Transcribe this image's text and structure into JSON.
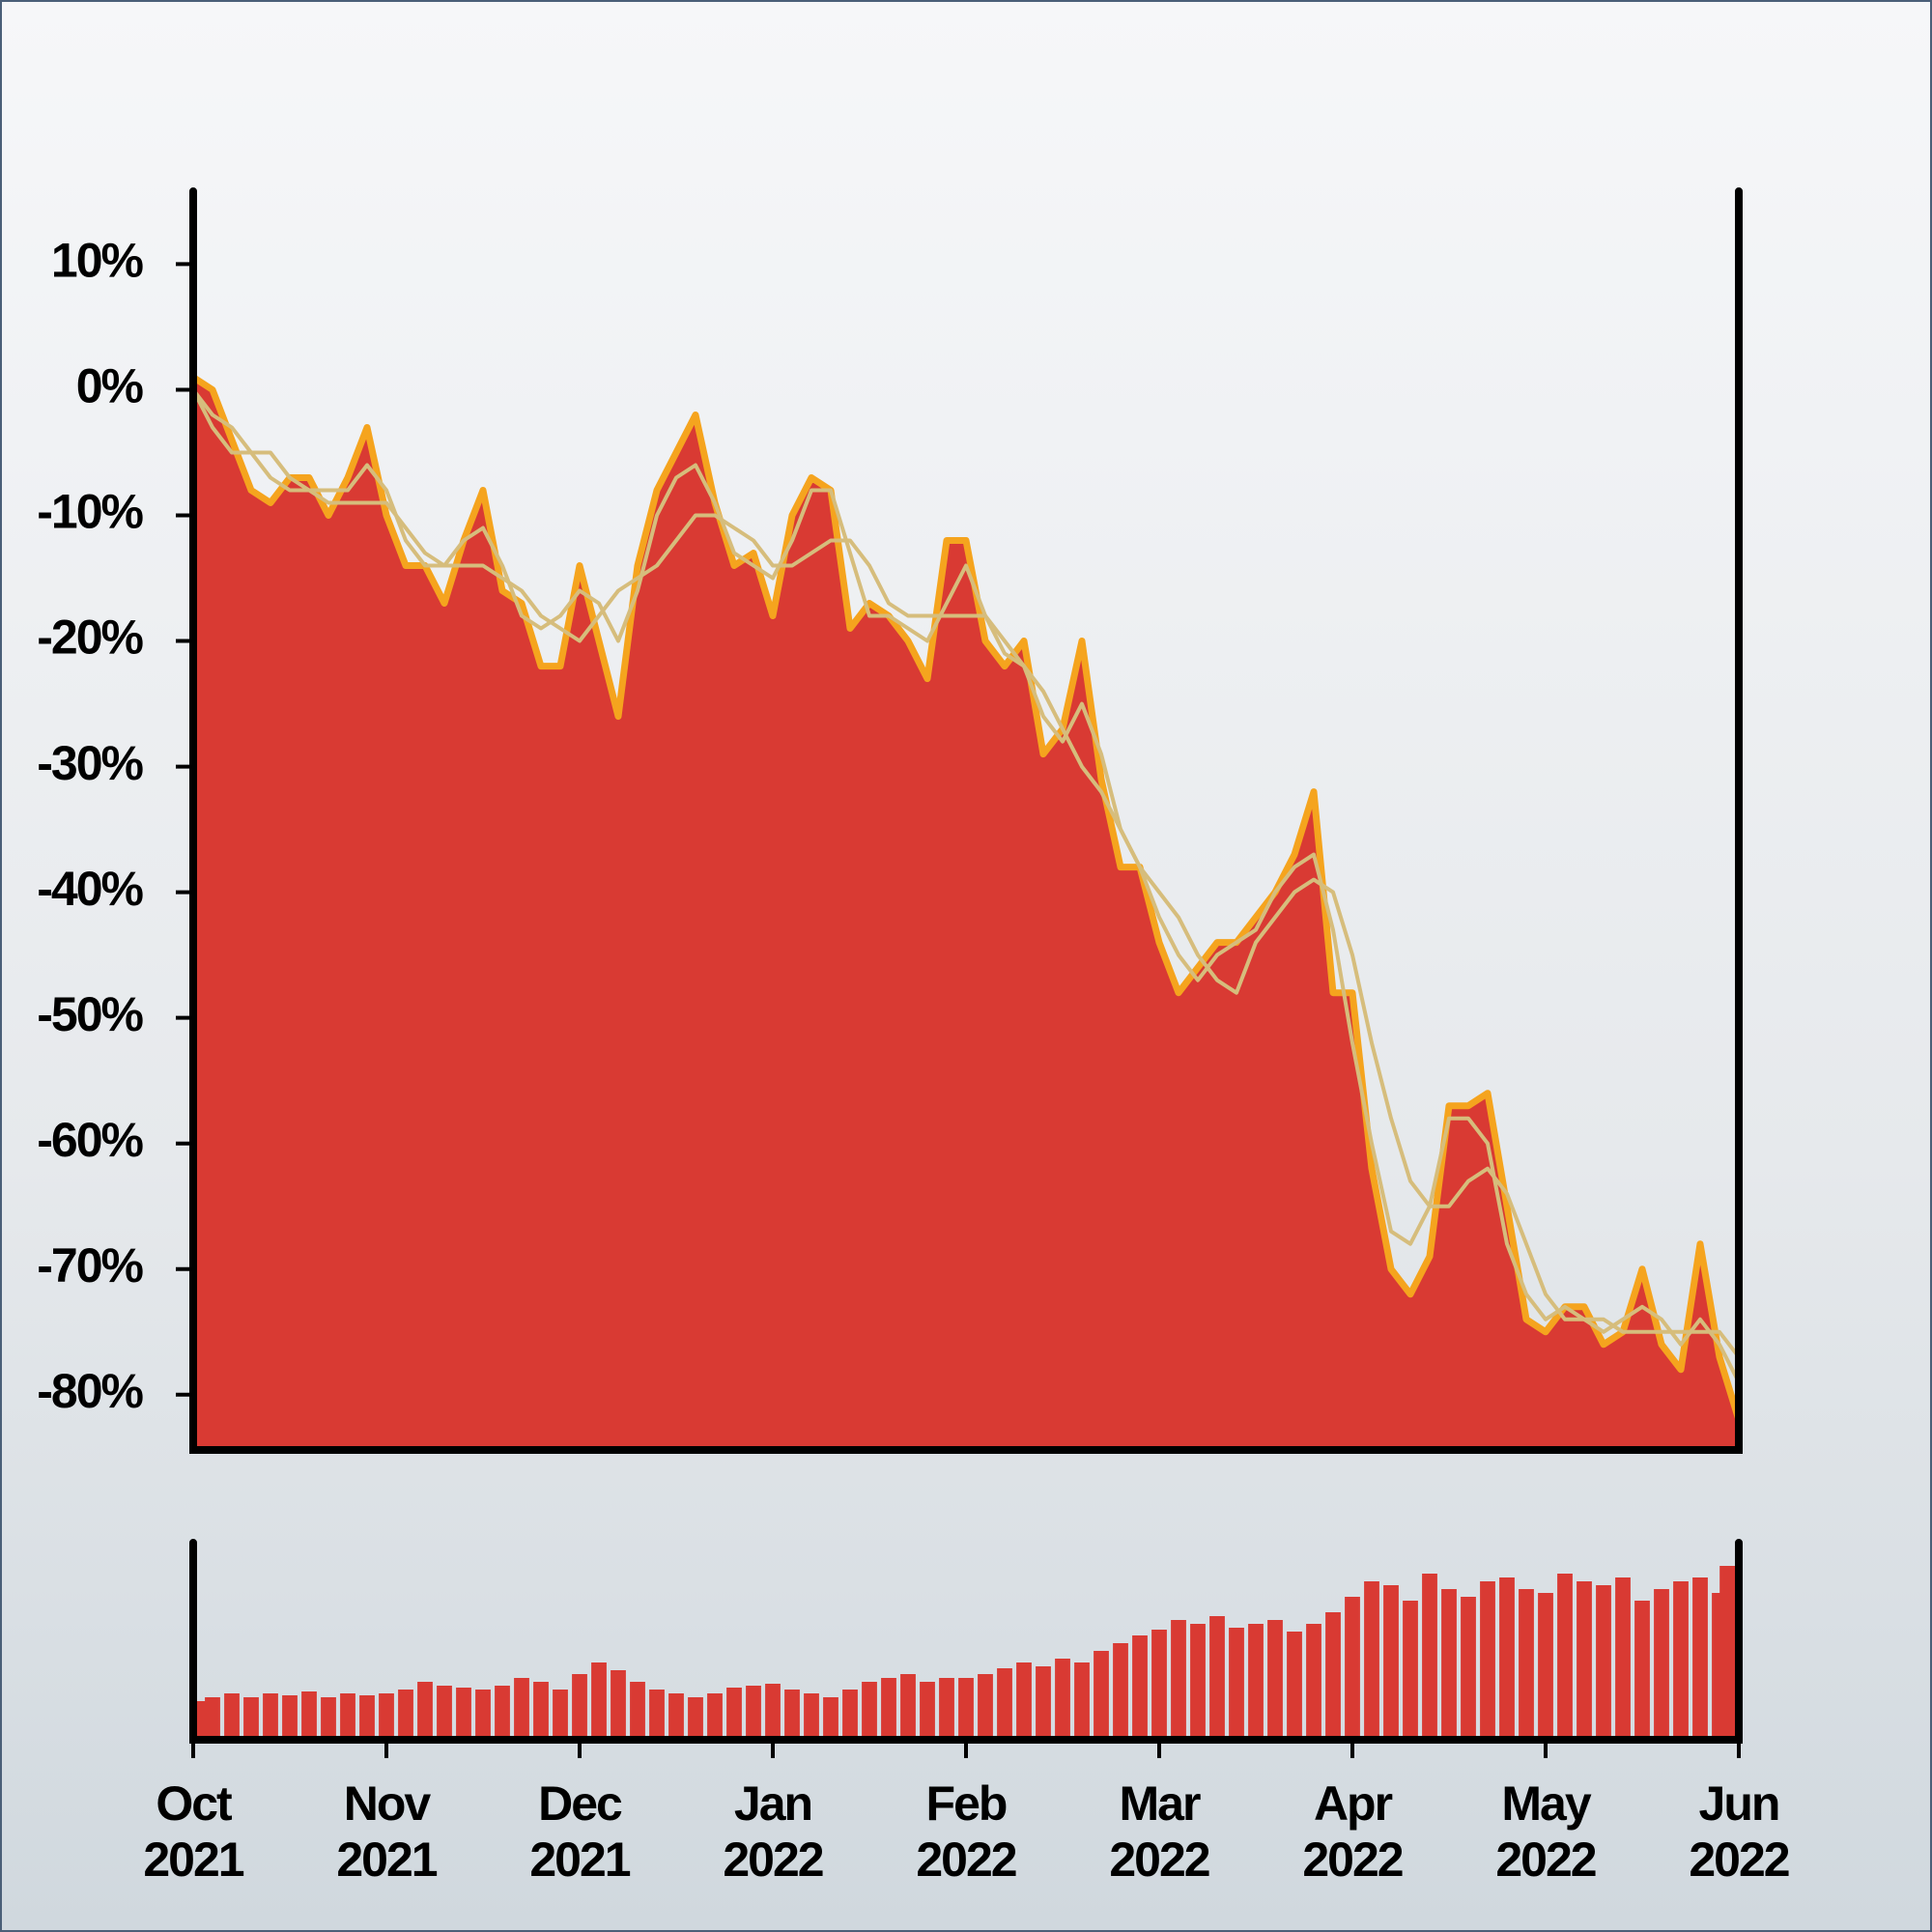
{
  "chart_data": {
    "type": "area",
    "x": [
      0,
      0.1,
      0.2,
      0.3,
      0.4,
      0.5,
      0.6,
      0.7,
      0.8,
      0.9,
      1,
      1.1,
      1.2,
      1.3,
      1.4,
      1.5,
      1.6,
      1.7,
      1.8,
      1.9,
      2,
      2.1,
      2.2,
      2.3,
      2.4,
      2.5,
      2.6,
      2.7,
      2.8,
      2.9,
      3,
      3.1,
      3.2,
      3.3,
      3.4,
      3.5,
      3.6,
      3.7,
      3.8,
      3.9,
      4,
      4.1,
      4.2,
      4.3,
      4.4,
      4.5,
      4.6,
      4.7,
      4.8,
      4.9,
      5,
      5.1,
      5.2,
      5.3,
      5.4,
      5.5,
      5.6,
      5.7,
      5.8,
      5.9,
      6,
      6.1,
      6.2,
      6.3,
      6.4,
      6.5,
      6.6,
      6.7,
      6.8,
      6.9,
      7,
      7.1,
      7.2,
      7.3,
      7.4,
      7.5,
      7.6,
      7.7,
      7.8,
      7.9,
      8
    ],
    "series": [
      {
        "color": "#d93a33",
        "outline": "#f5a41e",
        "values": [
          1,
          0,
          -4,
          -8,
          -9,
          -7,
          -7,
          -10,
          -7,
          -3,
          -10,
          -14,
          -14,
          -17,
          -12,
          -8,
          -16,
          -17,
          -22,
          -22,
          -14,
          -20,
          -26,
          -14,
          -8,
          -5,
          -2,
          -9,
          -14,
          -13,
          -18,
          -10,
          -7,
          -8,
          -19,
          -17,
          -18,
          -20,
          -23,
          -12,
          -12,
          -20,
          -22,
          -20,
          -29,
          -27,
          -20,
          -31,
          -38,
          -38,
          -44,
          -48,
          -46,
          -44,
          -44,
          -42,
          -40,
          -37,
          -32,
          -48,
          -48,
          -62,
          -70,
          -72,
          -69,
          -57,
          -57,
          -56,
          -65,
          -74,
          -75,
          -73,
          -73,
          -76,
          -75,
          -70,
          -76,
          -78,
          -68,
          -77,
          -82
        ]
      },
      {
        "color": "#d6bd7c",
        "values": [
          0,
          -2,
          -3,
          -5,
          -7,
          -8,
          -8,
          -8,
          -8,
          -6,
          -8,
          -12,
          -14,
          -14,
          -12,
          -11,
          -14,
          -18,
          -19,
          -18,
          -16,
          -17,
          -20,
          -16,
          -10,
          -7,
          -6,
          -9,
          -13,
          -14,
          -15,
          -12,
          -8,
          -8,
          -13,
          -18,
          -18,
          -19,
          -20,
          -17,
          -14,
          -18,
          -21,
          -22,
          -26,
          -28,
          -25,
          -29,
          -35,
          -38,
          -42,
          -45,
          -47,
          -45,
          -44,
          -43,
          -40,
          -38,
          -37,
          -43,
          -52,
          -60,
          -67,
          -68,
          -65,
          -58,
          -58,
          -60,
          -68,
          -72,
          -74,
          -73,
          -74,
          -75,
          -74,
          -73,
          -74,
          -76,
          -74,
          -76,
          -79
        ]
      },
      {
        "color": "#d6bd7c",
        "values": [
          0,
          -3,
          -5,
          -5,
          -5,
          -7,
          -8,
          -9,
          -9,
          -9,
          -9,
          -11,
          -13,
          -14,
          -14,
          -14,
          -15,
          -16,
          -18,
          -19,
          -20,
          -18,
          -16,
          -15,
          -14,
          -12,
          -10,
          -10,
          -11,
          -12,
          -14,
          -14,
          -13,
          -12,
          -12,
          -14,
          -17,
          -18,
          -18,
          -18,
          -18,
          -18,
          -20,
          -22,
          -24,
          -27,
          -30,
          -32,
          -35,
          -38,
          -40,
          -42,
          -45,
          -47,
          -48,
          -44,
          -42,
          -40,
          -39,
          -40,
          -45,
          -52,
          -58,
          -63,
          -65,
          -65,
          -63,
          -62,
          -64,
          -68,
          -72,
          -74,
          -74,
          -74,
          -75,
          -75,
          -75,
          -75,
          -75,
          -75,
          -77
        ]
      }
    ],
    "xlim": [
      0,
      8
    ],
    "xticks": [
      {
        "value": 0,
        "label": "Oct 2021"
      },
      {
        "value": 1,
        "label": "Nov 2021"
      },
      {
        "value": 2,
        "label": "Dec 2021"
      },
      {
        "value": 3,
        "label": "Jan 2022"
      },
      {
        "value": 4,
        "label": "Feb 2022"
      },
      {
        "value": 5,
        "label": "Mar 2022"
      },
      {
        "value": 6,
        "label": "Apr 2022"
      },
      {
        "value": 7,
        "label": "May 2022"
      },
      {
        "value": 8,
        "label": "Jun 2022"
      }
    ],
    "ylim": [
      -84.4,
      15.8
    ],
    "yticks": [
      {
        "value": 10,
        "label": "10%"
      },
      {
        "value": 0,
        "label": "0%"
      },
      {
        "value": -10,
        "label": "-10%"
      },
      {
        "value": -20,
        "label": "-20%"
      },
      {
        "value": -30,
        "label": "-30%"
      },
      {
        "value": -40,
        "label": "-40%"
      },
      {
        "value": -50,
        "label": "-50%"
      },
      {
        "value": -60,
        "label": "-60%"
      },
      {
        "value": -70,
        "label": "-70%"
      },
      {
        "value": -80,
        "label": "-80%"
      }
    ],
    "volume": {
      "color": "#d93a33",
      "ylim": [
        0,
        100
      ],
      "values": [
        18,
        20,
        22,
        20,
        22,
        21,
        23,
        20,
        22,
        21,
        22,
        24,
        28,
        26,
        25,
        24,
        26,
        30,
        28,
        24,
        32,
        38,
        34,
        28,
        24,
        22,
        20,
        22,
        25,
        26,
        27,
        24,
        22,
        20,
        24,
        28,
        30,
        32,
        28,
        30,
        30,
        32,
        35,
        38,
        36,
        40,
        38,
        44,
        48,
        52,
        55,
        60,
        58,
        62,
        56,
        58,
        60,
        54,
        58,
        64,
        72,
        80,
        78,
        70,
        84,
        76,
        72,
        80,
        82,
        76,
        74,
        84,
        80,
        78,
        82,
        70,
        76,
        80,
        82,
        74,
        88
      ]
    }
  }
}
